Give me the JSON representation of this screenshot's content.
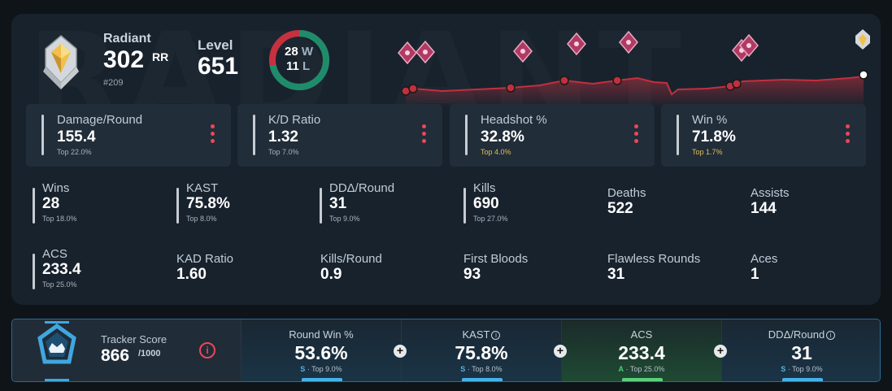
{
  "rank": {
    "name": "Radiant",
    "rr": "302",
    "rr_unit": "RR",
    "position": "#209"
  },
  "level": {
    "label": "Level",
    "value": "651"
  },
  "record": {
    "wins": "28",
    "wins_label": "W",
    "losses": "11",
    "losses_label": "L",
    "win_color": "#1e8c6b",
    "loss_color": "#c7313f"
  },
  "colors": {
    "accent_red": "#ee4657",
    "chart_red": "#c0303f",
    "tracker_blue": "#43b3ea",
    "grade_green": "#59d17c",
    "gold": "#e5bf59"
  },
  "top_stats": [
    {
      "label": "Damage/Round",
      "value": "155.4",
      "rank": "Top 22.0%"
    },
    {
      "label": "K/D Ratio",
      "value": "1.32",
      "rank": "Top 7.0%"
    },
    {
      "label": "Headshot %",
      "value": "32.8%",
      "rank": "Top 4.0%"
    },
    {
      "label": "Win %",
      "value": "71.8%",
      "rank": "Top 1.7%"
    }
  ],
  "stats": [
    {
      "label": "Wins",
      "value": "28",
      "rank": "Top 18.0%"
    },
    {
      "label": "KAST",
      "value": "75.8%",
      "rank": "Top 8.0%"
    },
    {
      "label": "DDΔ/Round",
      "value": "31",
      "rank": "Top 9.0%"
    },
    {
      "label": "Kills",
      "value": "690",
      "rank": "Top 27.0%"
    },
    {
      "label": "Deaths",
      "value": "522"
    },
    {
      "label": "Assists",
      "value": "144"
    },
    {
      "label": "ACS",
      "value": "233.4",
      "rank": "Top 25.0%"
    },
    {
      "label": "KAD Ratio",
      "value": "1.60"
    },
    {
      "label": "Kills/Round",
      "value": "0.9"
    },
    {
      "label": "First Bloods",
      "value": "93"
    },
    {
      "label": "Flawless Rounds",
      "value": "31"
    },
    {
      "label": "Aces",
      "value": "1"
    }
  ],
  "tracker": {
    "label": "Tracker Score",
    "value": "866",
    "max": "/1000",
    "info_icon": "i",
    "cells": [
      {
        "label": "Round Win %",
        "value": "53.6%",
        "grade": "S",
        "rank": "· Top 9.0%"
      },
      {
        "label": "KAST",
        "value": "75.8%",
        "grade": "S",
        "rank": "· Top 8.0%"
      },
      {
        "label": "ACS",
        "value": "233.4",
        "grade": "A",
        "rank": "· Top 25.0%"
      },
      {
        "label": "DDΔ/Round",
        "value": "31",
        "grade": "S",
        "rank": "· Top 9.0%"
      }
    ]
  }
}
